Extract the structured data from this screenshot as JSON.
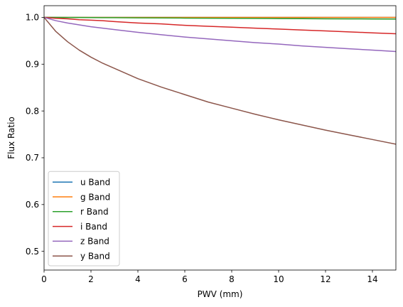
{
  "chart_data": {
    "type": "line",
    "title": "",
    "xlabel": "PWV (mm)",
    "ylabel": "Flux Ratio",
    "xlim": [
      0,
      15
    ],
    "ylim": [
      0.46,
      1.025
    ],
    "xticks": [
      0,
      2,
      4,
      6,
      8,
      10,
      12,
      14
    ],
    "yticks": [
      0.5,
      0.6,
      0.7,
      0.8,
      0.9,
      1.0
    ],
    "xtick_labels": [
      "0",
      "2",
      "4",
      "6",
      "8",
      "10",
      "12",
      "14"
    ],
    "ytick_labels": [
      "0.5",
      "0.6",
      "0.7",
      "0.8",
      "0.9",
      "1.0"
    ],
    "grid": false,
    "legend_position": "lower-left",
    "x": [
      0,
      0.5,
      1,
      1.5,
      2,
      2.5,
      3,
      4,
      5,
      6,
      7,
      8,
      9,
      10,
      11,
      12,
      13,
      14,
      15
    ],
    "series": [
      {
        "name": "u Band",
        "color": "#1f77b4",
        "values": [
          1.0,
          1.0,
          1.0,
          1.0,
          1.0,
          1.0,
          1.0,
          1.0,
          1.0,
          1.0,
          1.0,
          1.0,
          1.0,
          1.0,
          1.0,
          1.0,
          1.0,
          1.0,
          1.0
        ]
      },
      {
        "name": "g Band",
        "color": "#ff7f0e",
        "values": [
          1.0,
          1.0,
          1.0,
          1.0,
          1.0,
          1.0,
          1.0,
          1.0,
          1.0,
          1.0,
          1.0,
          1.0,
          1.0,
          1.0,
          1.0,
          1.0,
          1.0,
          1.0,
          1.0
        ]
      },
      {
        "name": "r Band",
        "color": "#2ca02c",
        "values": [
          1.0,
          1.0,
          0.9998,
          0.9997,
          0.9995,
          0.9994,
          0.9993,
          0.999,
          0.9988,
          0.9985,
          0.9983,
          0.998,
          0.9978,
          0.9975,
          0.9973,
          0.997,
          0.9968,
          0.9966,
          0.9964
        ]
      },
      {
        "name": "i Band",
        "color": "#d62728",
        "values": [
          1.0,
          0.998,
          0.997,
          0.995,
          0.994,
          0.993,
          0.991,
          0.988,
          0.986,
          0.983,
          0.981,
          0.979,
          0.977,
          0.975,
          0.973,
          0.971,
          0.969,
          0.967,
          0.965
        ]
      },
      {
        "name": "z Band",
        "color": "#9467bd",
        "values": [
          1.0,
          0.993,
          0.988,
          0.984,
          0.98,
          0.977,
          0.974,
          0.968,
          0.963,
          0.958,
          0.954,
          0.95,
          0.946,
          0.943,
          0.939,
          0.936,
          0.933,
          0.93,
          0.927
        ]
      },
      {
        "name": "y Band",
        "color": "#8c564b",
        "values": [
          1.0,
          0.97,
          0.948,
          0.93,
          0.915,
          0.902,
          0.891,
          0.869,
          0.851,
          0.835,
          0.819,
          0.806,
          0.793,
          0.781,
          0.77,
          0.759,
          0.749,
          0.739,
          0.729
        ]
      }
    ]
  }
}
